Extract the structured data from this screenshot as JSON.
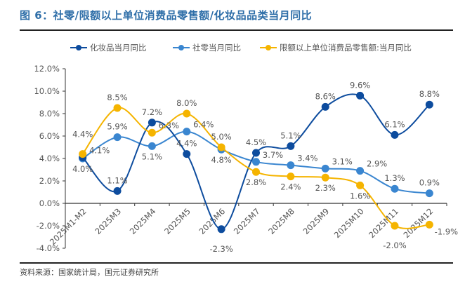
{
  "title": "图 6：社零/限额以上单位消费品零售额/化妆品品类当月同比",
  "source": "资料来源：国家统计局，国元证券研究所",
  "chart_data": {
    "type": "line",
    "categories": [
      "2025M1-M2",
      "2025M3",
      "2025M4",
      "2025M5",
      "2025M6",
      "2025M7",
      "2025M8",
      "2025M9",
      "2025M10",
      "2025M11",
      "2025M12"
    ],
    "series": [
      {
        "name": "化妆品当月同比",
        "color": "#0d4c9e",
        "values": [
          4.1,
          1.1,
          7.2,
          4.4,
          -2.3,
          4.5,
          5.1,
          8.6,
          9.6,
          6.1,
          8.8
        ]
      },
      {
        "name": "社零当月同比",
        "color": "#3a86d0",
        "values": [
          4.0,
          5.9,
          5.1,
          6.4,
          4.8,
          3.7,
          3.4,
          3.1,
          2.9,
          1.3,
          0.9
        ]
      },
      {
        "name": "限额以上单位消费品零售额:当月同比",
        "color": "#f5b400",
        "values": [
          4.4,
          8.5,
          6.3,
          8.0,
          5.0,
          2.8,
          2.4,
          2.3,
          1.6,
          -2.0,
          -1.9
        ]
      }
    ],
    "ylim": [
      -4,
      12
    ],
    "yticks": [
      "12.0%",
      "10.0%",
      "8.0%",
      "6.0%",
      "4.0%",
      "2.0%",
      "0.0%",
      "-2.0%",
      "-4.0%"
    ],
    "yformat": "percent",
    "legend": "top",
    "grid": false
  }
}
